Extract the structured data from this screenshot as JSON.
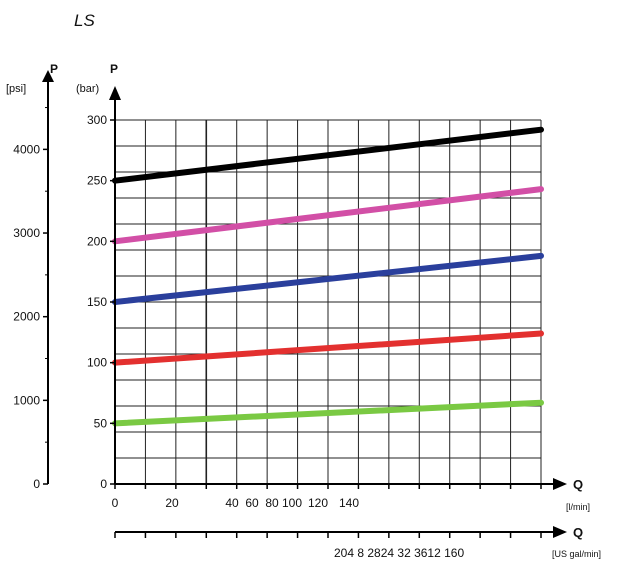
{
  "chart_data": {
    "type": "line",
    "title": "LS",
    "left_axis": {
      "label": "P",
      "unit": "[psi]",
      "ticks": [
        "0",
        "1000",
        "2000",
        "3000",
        "4000"
      ]
    },
    "y_axis": {
      "label": "P",
      "unit": "(bar)",
      "ylim": [
        0,
        300
      ],
      "ticks": [
        "0",
        "50",
        "100",
        "150",
        "200",
        "250",
        "300"
      ]
    },
    "x_axis": {
      "label": "Q",
      "unit": "[l/min]",
      "ticks": [
        "0",
        "20",
        "40",
        "60",
        "80",
        "100",
        "120",
        "140"
      ]
    },
    "x2_axis": {
      "label": "Q",
      "unit": "[US gal/min]",
      "tick_text": "204 8 2824 32 3612 160"
    },
    "grid": true,
    "series": [
      {
        "color": "#000000",
        "values": [
          250,
          292
        ]
      },
      {
        "color": "#d24fa6",
        "values": [
          200,
          243
        ]
      },
      {
        "color": "#2a3f9c",
        "values": [
          150,
          188
        ]
      },
      {
        "color": "#e3302f",
        "values": [
          100,
          124
        ]
      },
      {
        "color": "#7ac943",
        "values": [
          50,
          67
        ]
      }
    ]
  }
}
